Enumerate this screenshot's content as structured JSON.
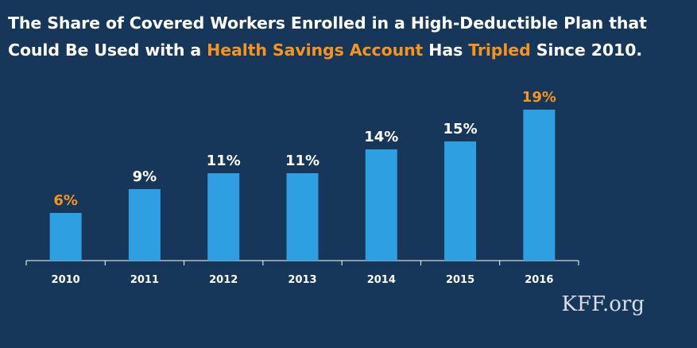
{
  "title": {
    "line1": "The Share of Covered Workers Enrolled in a High-Deductible Plan that",
    "line2_part1": "Could Be Used with a ",
    "line2_highlight1": "Health Savings Account",
    "line2_part2": " Has ",
    "line2_highlight2": "Tripled",
    "line2_part3": " Since 2010."
  },
  "brand": "KFF.org",
  "colors": {
    "background": "#16375a",
    "bar": "#2e9fe0",
    "accent": "#f7941d",
    "label": "#ffffff",
    "axis": "#ffffff"
  },
  "chart_data": {
    "type": "bar",
    "categories": [
      "2010",
      "2011",
      "2012",
      "2013",
      "2014",
      "2015",
      "2016"
    ],
    "values": [
      6,
      9,
      11,
      11,
      14,
      15,
      19
    ],
    "data_labels": [
      "6%",
      "9%",
      "11%",
      "11%",
      "14%",
      "15%",
      "19%"
    ],
    "highlighted_labels": [
      "2010",
      "2016"
    ],
    "title": "",
    "xlabel": "",
    "ylabel": "",
    "ylim": [
      0,
      20
    ],
    "grid": false,
    "legend": "none"
  }
}
